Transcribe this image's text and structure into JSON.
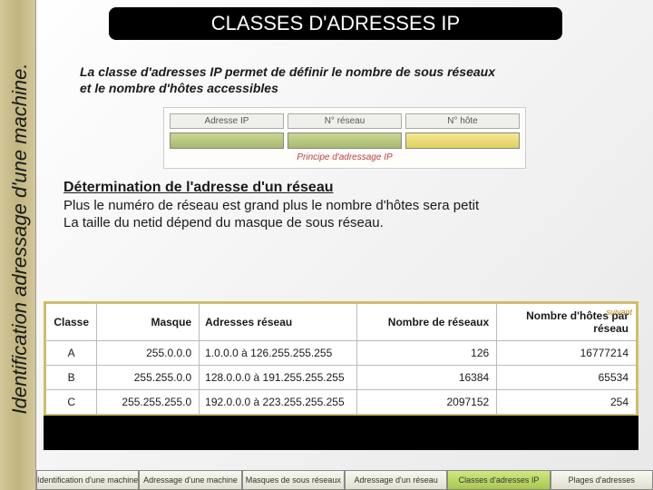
{
  "sidebar_label": "Identification adressage d'une machine.",
  "title": "CLASSES D'ADRESSES IP",
  "intro_line1": "La classe d'adresses IP permet de définir le nombre de sous réseaux",
  "intro_line2": "et le nombre d'hôtes accessibles",
  "diagram": {
    "col1": "Adresse IP",
    "col2": "N° réseau",
    "col3": "N° hôte",
    "caption": "Principe d'adressage IP",
    "green": "#b8c878",
    "yellow": "#ead870"
  },
  "section_title": "Détermination de l'adresse d'un réseau",
  "section_line1": "Plus le numéro de réseau est grand plus le nombre d'hôtes sera petit",
  "section_line2": "La taille du netid dépend du masque de sous réseau.",
  "table": {
    "headers": {
      "classe": "Classe",
      "masque": "Masque",
      "adresses": "Adresses réseau",
      "reseaux": "Nombre de réseaux",
      "hotes": "Nombre d'hôtes par réseau",
      "suivant": "suivant"
    },
    "rows": [
      {
        "classe": "A",
        "masque": "255.0.0.0",
        "adresses": "1.0.0.0 à 126.255.255.255",
        "reseaux": "126",
        "hotes": "16777214"
      },
      {
        "classe": "B",
        "masque": "255.255.0.0",
        "adresses": "128.0.0.0 à 191.255.255.255",
        "reseaux": "16384",
        "hotes": "65534"
      },
      {
        "classe": "C",
        "masque": "255.255.255.0",
        "adresses": "192.0.0.0 à 223.255.255.255",
        "reseaux": "2097152",
        "hotes": "254"
      }
    ]
  },
  "nav": [
    "Identification d'une machine",
    "Adressage d'une machine",
    "Masques de sous réseaux",
    "Adressage d'un réseau",
    "Classes d'adresses IP",
    "Plages d'adresses"
  ],
  "colors": {
    "title_bg": "#000000",
    "title_fg": "#ffffff",
    "sidebar_bg": "#c8bc88",
    "accent_border": "#d8c040",
    "nav_active": "#bcd860"
  }
}
